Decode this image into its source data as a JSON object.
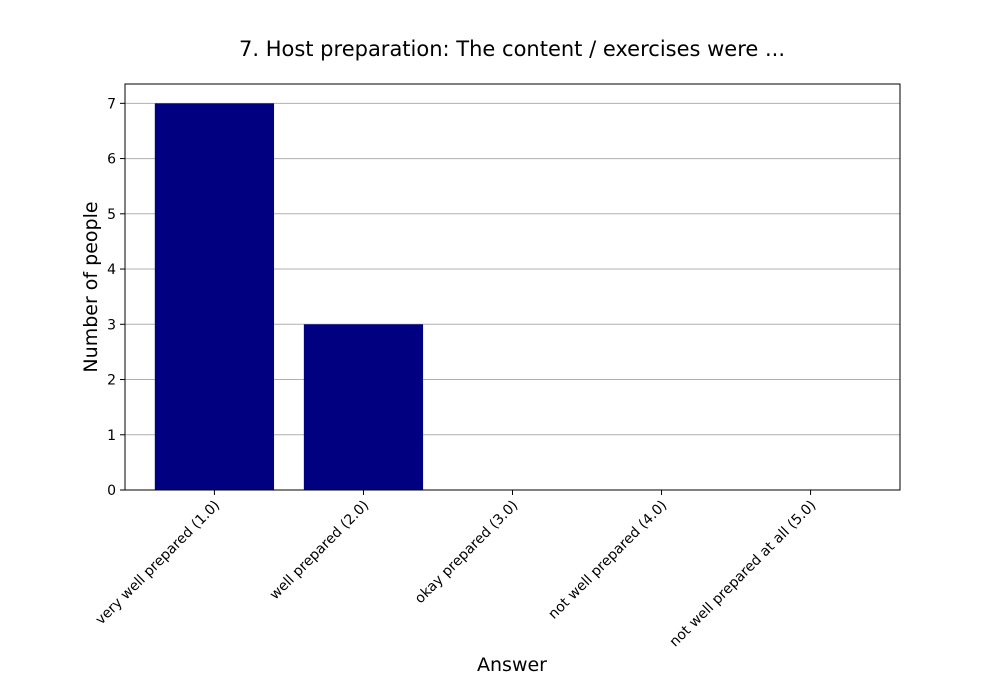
{
  "chart_data": {
    "type": "bar",
    "title": "7. Host preparation: The content / exercises were ...",
    "xlabel": "Answer",
    "ylabel": "Number of people",
    "categories": [
      "very well prepared (1.0)",
      "well prepared (2.0)",
      "okay prepared (3.0)",
      "not well prepared (4.0)",
      "not well prepared at all (5.0)"
    ],
    "values": [
      7,
      3,
      0,
      0,
      0
    ],
    "ylim": [
      0,
      7.35
    ],
    "yticks": [
      "0",
      "1",
      "2",
      "3",
      "4",
      "5",
      "6",
      "7"
    ],
    "grid": "horizontal",
    "bar_color": "#000080"
  }
}
